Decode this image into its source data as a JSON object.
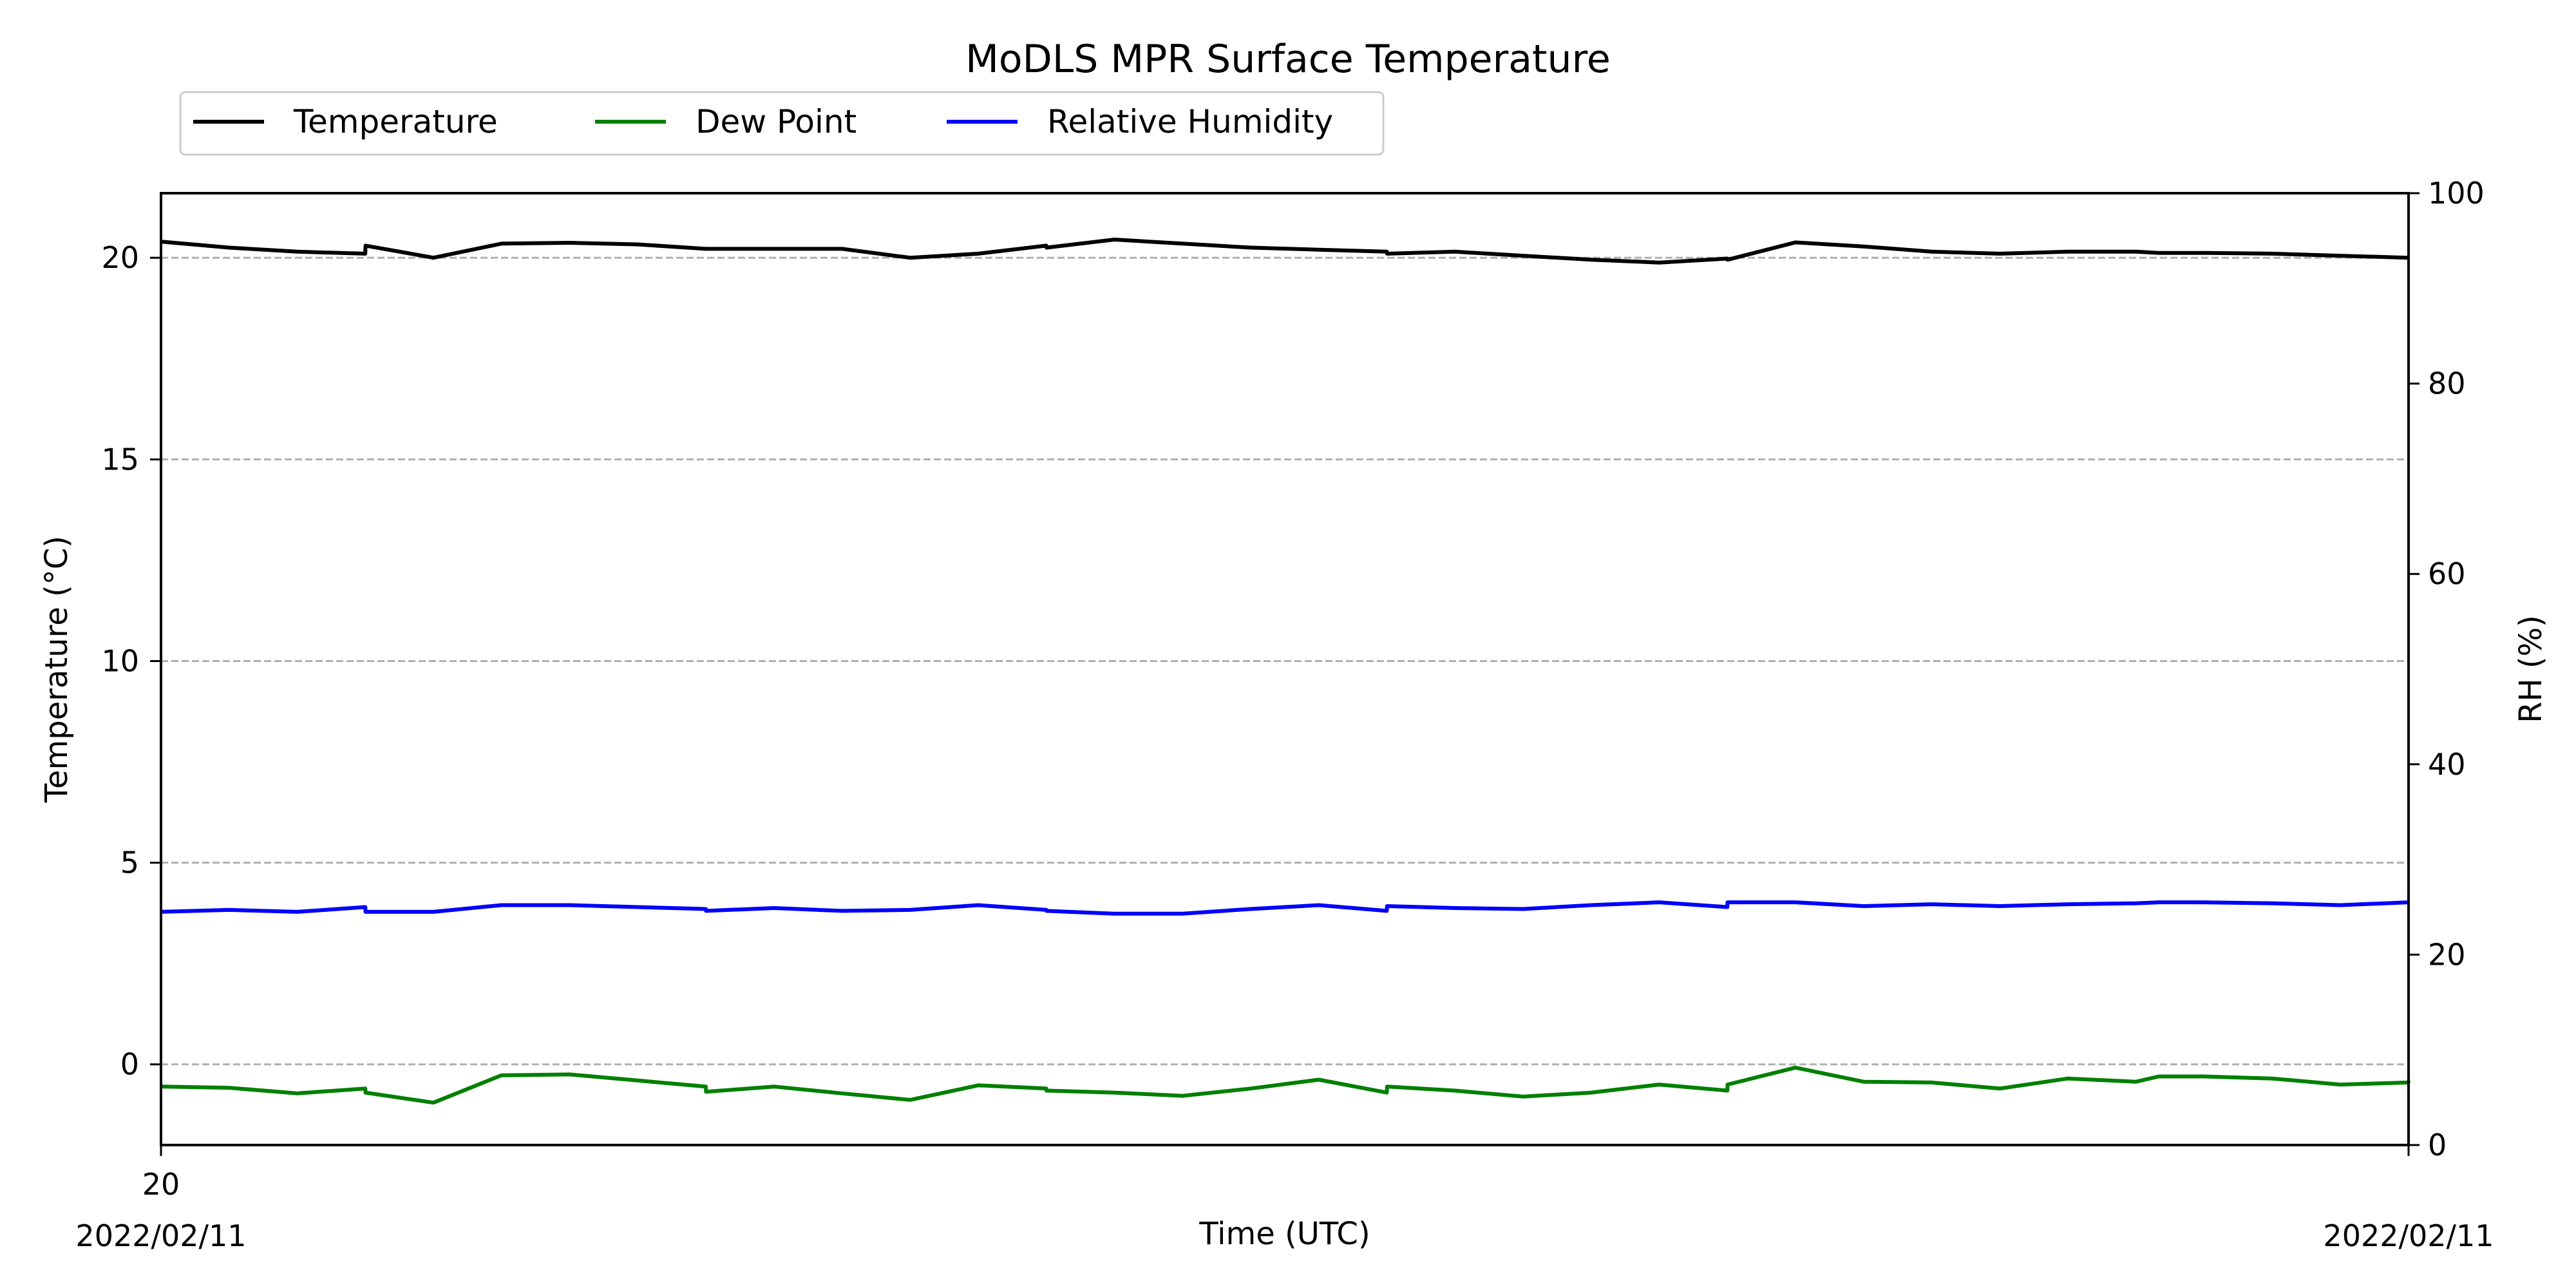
{
  "chart_data": {
    "type": "line",
    "title": "MoDLS MPR Surface Temperature",
    "xlabel": "Time (UTC)",
    "ylabel": "Temperature ($^\\circ$C)",
    "ylabel_display": "Temperature (°C)",
    "y2label": "RH (%)",
    "ylim": [
      -2,
      21.6
    ],
    "y2lim": [
      0,
      100
    ],
    "yticks": [
      0,
      5,
      10,
      15,
      20
    ],
    "y2ticks": [
      0,
      20,
      40,
      60,
      80,
      100
    ],
    "grid": "horizontal dashed",
    "legend_position": "top-left, above plot",
    "x_tick_labels": {
      "left_hour": "20",
      "left_date": "2022/02/11",
      "right_date": "2022/02/11"
    },
    "x": [
      0,
      3,
      6,
      9,
      9.01,
      12,
      15,
      18,
      21,
      24,
      24.01,
      27,
      30,
      33,
      36,
      39,
      39.01,
      42,
      45,
      48,
      51,
      54,
      54.01,
      57,
      60,
      63,
      66,
      69,
      69.01,
      72,
      75,
      78,
      81,
      84,
      87,
      88.01,
      90,
      93,
      96,
      99,
      99.01
    ],
    "series": [
      {
        "name": "Temperature",
        "axis": "left",
        "color": "#000000",
        "values": [
          20.4,
          20.25,
          20.15,
          20.1,
          20.3,
          20.0,
          20.35,
          20.37,
          20.33,
          20.22,
          20.22,
          20.22,
          20.22,
          20.0,
          20.1,
          20.3,
          20.25,
          20.45,
          20.35,
          20.25,
          20.2,
          20.15,
          20.1,
          20.15,
          20.05,
          19.95,
          19.88,
          19.98,
          19.95,
          20.38,
          20.28,
          20.15,
          20.1,
          20.15,
          20.15,
          20.12,
          20.12,
          20.1,
          20.05,
          20.0,
          20.0
        ]
      },
      {
        "name": "Dew Point",
        "axis": "left",
        "color": "#008000",
        "values": [
          -0.55,
          -0.58,
          -0.72,
          -0.6,
          -0.7,
          -0.95,
          -0.27,
          -0.25,
          -0.4,
          -0.55,
          -0.68,
          -0.55,
          -0.72,
          -0.88,
          -0.52,
          -0.6,
          -0.65,
          -0.7,
          -0.78,
          -0.6,
          -0.38,
          -0.7,
          -0.55,
          -0.65,
          -0.8,
          -0.7,
          -0.5,
          -0.65,
          -0.5,
          -0.08,
          -0.43,
          -0.45,
          -0.6,
          -0.35,
          -0.43,
          -0.3,
          -0.3,
          -0.35,
          -0.5,
          -0.45,
          -0.4
        ]
      },
      {
        "name": "Relative Humidity",
        "axis": "right",
        "color": "#0000ff",
        "values": [
          24.5,
          24.7,
          24.5,
          25.0,
          24.5,
          24.5,
          25.2,
          25.2,
          25.0,
          24.8,
          24.6,
          24.9,
          24.6,
          24.7,
          25.2,
          24.7,
          24.6,
          24.3,
          24.3,
          24.8,
          25.2,
          24.6,
          25.1,
          24.9,
          24.8,
          25.2,
          25.5,
          25.0,
          25.5,
          25.5,
          25.1,
          25.3,
          25.1,
          25.3,
          25.4,
          25.5,
          25.5,
          25.4,
          25.2,
          25.5,
          25.5
        ]
      }
    ]
  }
}
